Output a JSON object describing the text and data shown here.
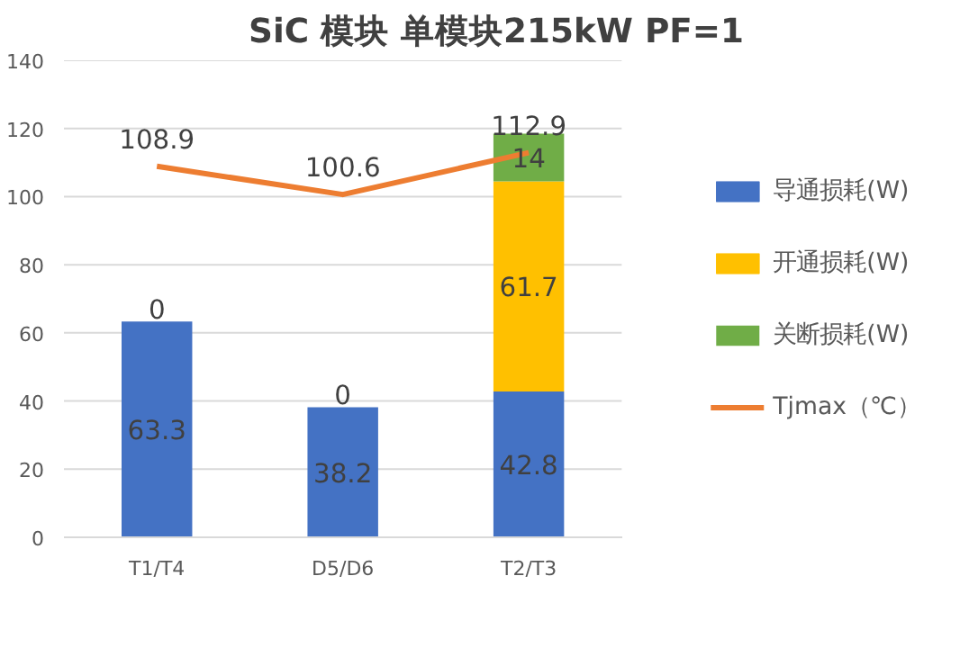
{
  "chart_data": {
    "type": "bar",
    "title": "SiC 模块 单模块215kW PF=1",
    "categories": [
      "T1/T4",
      "D5/D6",
      "T2/T3"
    ],
    "stacked": true,
    "ylim": [
      0,
      140
    ],
    "yticks": [
      0,
      20,
      40,
      60,
      80,
      100,
      120,
      140
    ],
    "grid": "y",
    "legend": "right",
    "data_labels": true,
    "marker": "none",
    "line_style": "solid",
    "series": [
      {
        "name": "导通损耗(W)",
        "color": "#4472c4",
        "values": [
          63.3,
          38.2,
          42.8
        ]
      },
      {
        "name": "开通损耗(W)",
        "color": "#ffc000",
        "values": [
          0,
          0,
          61.7
        ]
      },
      {
        "name": "关断损耗(W)",
        "color": "#70ad47",
        "values": [
          null,
          null,
          14
        ]
      },
      {
        "name": "Tjmax（℃）",
        "type": "line",
        "color": "#ed7d31",
        "values": [
          108.9,
          100.6,
          112.9
        ]
      }
    ]
  }
}
